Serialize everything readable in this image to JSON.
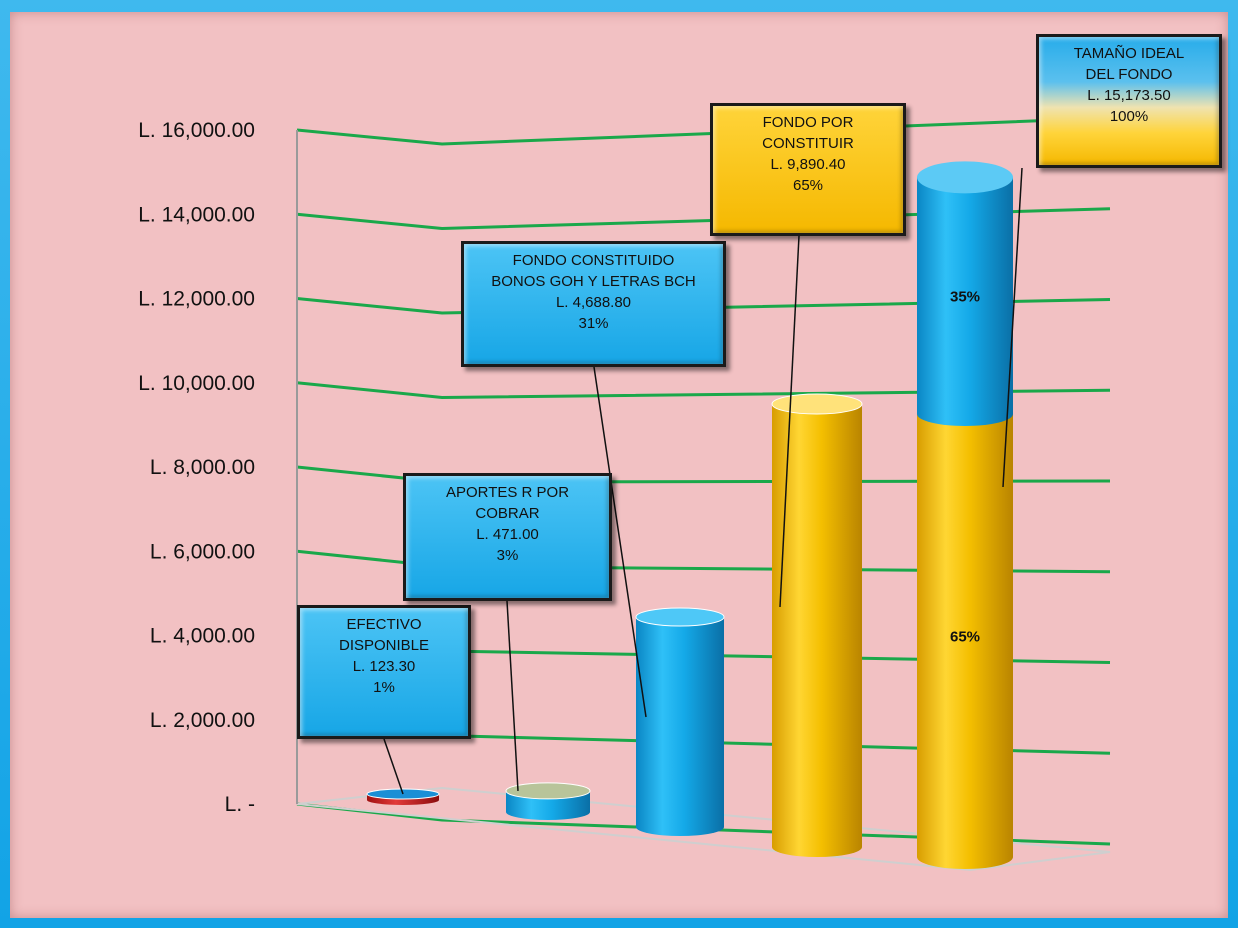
{
  "chart_data": {
    "type": "bar",
    "title": "",
    "y_ticks": [
      "L. 16,000.00",
      "L. 14,000.00",
      "L. 12,000.00",
      "L. 10,000.00",
      "L. 8,000.00",
      "L. 6,000.00",
      "L. 4,000.00",
      "L. 2,000.00",
      "L. -"
    ],
    "ylim": [
      0,
      16000
    ],
    "grid": true,
    "categories": [
      "",
      "",
      "",
      "",
      ""
    ],
    "series": [
      {
        "values": [
          123.3,
          471.0,
          4688.8,
          9890.4,
          9890.4
        ]
      },
      {
        "values": [
          0,
          0,
          0,
          0,
          5283.1
        ]
      }
    ],
    "stack_labels": [
      "65%",
      "35%"
    ],
    "colors": {
      "blue": "#12a8e8",
      "gold": "#f5c200",
      "red": "#d22a2a",
      "grid": "#1aa84a"
    }
  },
  "callouts": {
    "efectivo": {
      "line1": "EFECTIVO",
      "line2": "DISPONIBLE",
      "value": "L. 123.30",
      "pct": "1%"
    },
    "aportes": {
      "line1": "APORTES R  POR",
      "line2": "COBRAR",
      "value": "L. 471.00",
      "pct": "3%"
    },
    "constituido": {
      "line1": "FONDO CONSTITUIDO",
      "line2": "BONOS GOH Y LETRAS BCH",
      "value": "L. 4,688.80",
      "pct": "31%"
    },
    "por_constituir": {
      "line1": "FONDO POR",
      "line2": "CONSTITUIR",
      "value": "L. 9,890.40",
      "pct": "65%"
    },
    "ideal": {
      "line1": "TAMAÑO IDEAL",
      "line2": "DEL FONDO",
      "value": "L. 15,173.50",
      "pct": "100%"
    }
  }
}
